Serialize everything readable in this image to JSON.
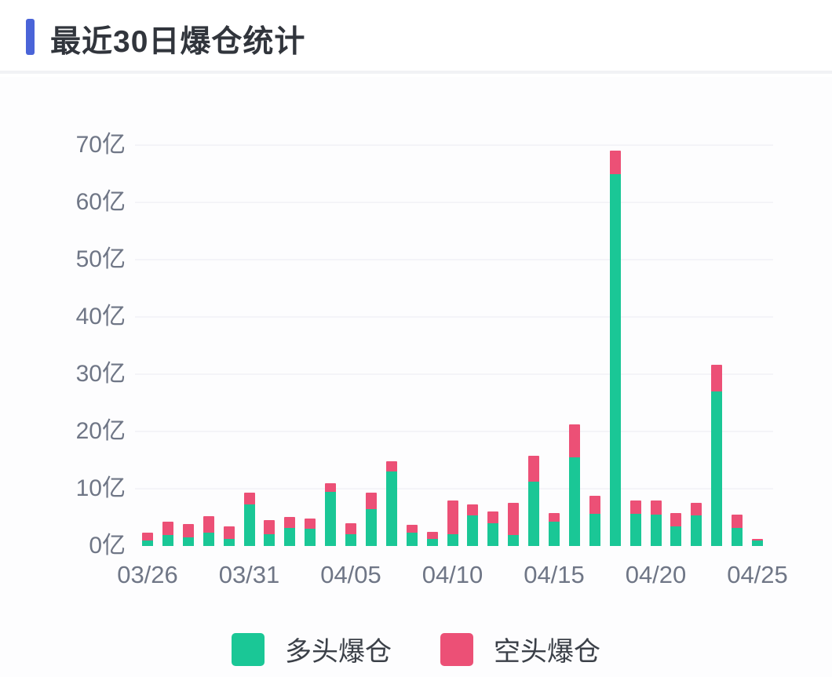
{
  "page": {
    "title": "最近30日爆仓统计"
  },
  "colors": {
    "accent": "#4a64d8",
    "long": "#1ac796",
    "short": "#ec5076",
    "axis_label": "#6f7686",
    "gridline": "#f4f4f8"
  },
  "chart_data": {
    "type": "bar",
    "stacked": true,
    "title": "最近30日爆仓统计",
    "unit": "亿",
    "categories": [
      "03/26",
      "03/27",
      "03/28",
      "03/29",
      "03/30",
      "03/31",
      "04/01",
      "04/02",
      "04/03",
      "04/04",
      "04/05",
      "04/06",
      "04/07",
      "04/08",
      "04/09",
      "04/10",
      "04/11",
      "04/12",
      "04/13",
      "04/14",
      "04/15",
      "04/16",
      "04/17",
      "04/18",
      "04/19",
      "04/20",
      "04/21",
      "04/22",
      "04/23",
      "04/24",
      "04/25"
    ],
    "series": [
      {
        "name": "多头爆仓",
        "color_key": "long",
        "values": [
          1.0,
          1.9,
          1.5,
          2.3,
          1.2,
          7.3,
          2.0,
          3.1,
          3.0,
          9.5,
          2.0,
          6.5,
          13.0,
          2.3,
          1.3,
          2.1,
          5.3,
          4.0,
          1.9,
          11.2,
          4.3,
          15.5,
          5.6,
          65.0,
          5.6,
          5.5,
          3.4,
          5.3,
          27.0,
          3.2,
          1.0
        ]
      },
      {
        "name": "空头爆仓",
        "color_key": "short",
        "values": [
          1.3,
          2.4,
          2.3,
          2.9,
          2.2,
          2.0,
          2.5,
          2.0,
          1.8,
          1.5,
          2.0,
          2.8,
          1.8,
          1.4,
          1.2,
          5.9,
          1.9,
          2.0,
          5.7,
          4.6,
          1.5,
          5.7,
          3.2,
          4.1,
          2.3,
          2.4,
          2.4,
          2.3,
          4.6,
          2.3,
          0.2
        ]
      }
    ],
    "ylim": [
      0,
      70
    ],
    "y_ticks": [
      0,
      10,
      20,
      30,
      40,
      50,
      60,
      70
    ],
    "y_tick_suffix": "亿",
    "x_tick_labels": [
      "03/26",
      "03/31",
      "04/05",
      "04/10",
      "04/15",
      "04/20",
      "04/25"
    ],
    "grid": true,
    "legend_position": "bottom"
  }
}
